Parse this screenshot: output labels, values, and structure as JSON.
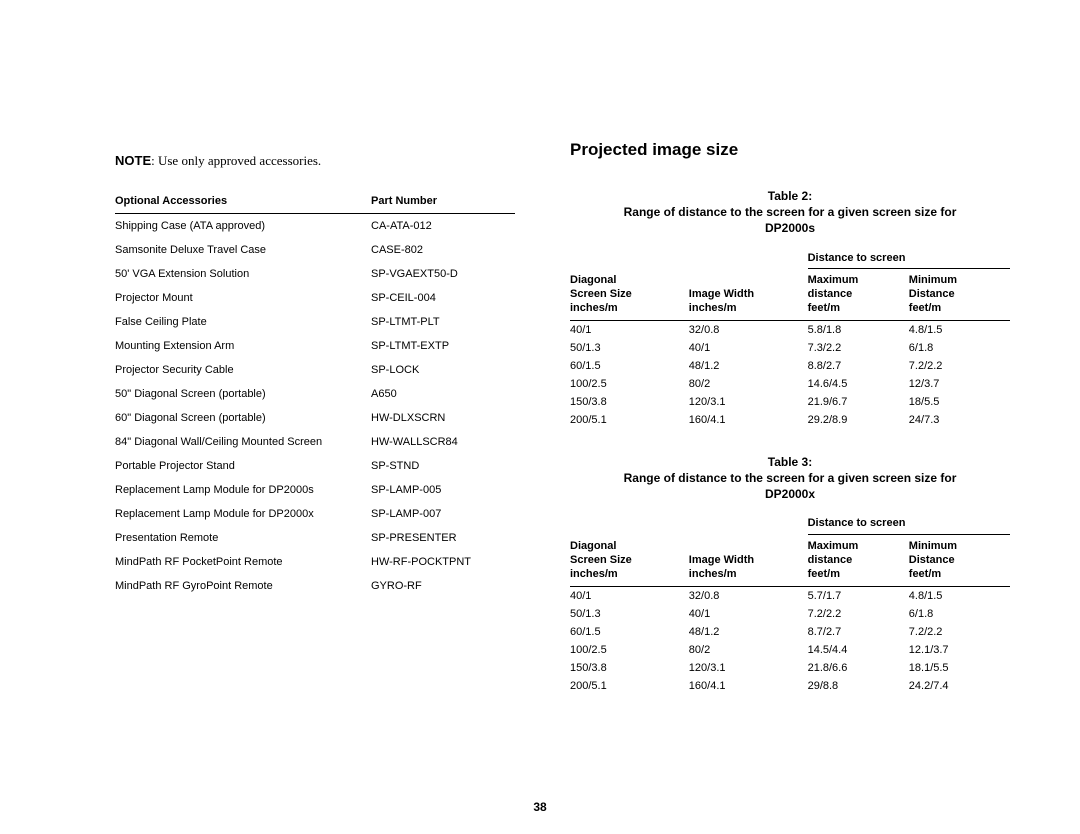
{
  "leftColumn": {
    "noteBold": "NOTE",
    "noteText": ": Use only approved accessories.",
    "headers": {
      "col1": "Optional Accessories",
      "col2": "Part Number"
    },
    "rows": [
      {
        "name": "Shipping Case (ATA approved)",
        "part": "CA-ATA-012"
      },
      {
        "name": "Samsonite Deluxe Travel Case",
        "part": "CASE-802"
      },
      {
        "name": "50' VGA Extension Solution",
        "part": "SP-VGAEXT50-D"
      },
      {
        "name": "Projector Mount",
        "part": "SP-CEIL-004"
      },
      {
        "name": "False Ceiling Plate",
        "part": "SP-LTMT-PLT"
      },
      {
        "name": "Mounting Extension Arm",
        "part": "SP-LTMT-EXTP"
      },
      {
        "name": "Projector Security Cable",
        "part": "SP-LOCK"
      },
      {
        "name": "50\" Diagonal Screen (portable)",
        "part": "A650"
      },
      {
        "name": "60\" Diagonal Screen (portable)",
        "part": "HW-DLXSCRN"
      },
      {
        "name": "84\" Diagonal Wall/Ceiling Mounted Screen",
        "part": "HW-WALLSCR84"
      },
      {
        "name": "Portable Projector Stand",
        "part": "SP-STND"
      },
      {
        "name": "Replacement Lamp Module for DP2000s",
        "part": "SP-LAMP-005"
      },
      {
        "name": "Replacement Lamp Module for DP2000x",
        "part": "SP-LAMP-007"
      },
      {
        "name": "Presentation Remote",
        "part": "SP-PRESENTER"
      },
      {
        "name": "MindPath RF PocketPoint Remote",
        "part": "HW-RF-POCKTPNT"
      },
      {
        "name": "MindPath RF GyroPoint Remote",
        "part": "GYRO-RF"
      }
    ]
  },
  "rightColumn": {
    "heading": "Projected image size",
    "table2": {
      "captionLine1": "Table 2:",
      "captionLine2": "Range of distance to the screen for a given screen size for",
      "captionLine3": "DP2000s",
      "spanHeader": "Distance to screen",
      "headers": {
        "c1": "Diagonal\nScreen Size\ninches/m",
        "c2": "Image Width\ninches/m",
        "c3": "Maximum\ndistance\nfeet/m",
        "c4": "Minimum\nDistance\nfeet/m"
      },
      "rows": [
        {
          "c1": "40/1",
          "c2": "32/0.8",
          "c3": "5.8/1.8",
          "c4": "4.8/1.5"
        },
        {
          "c1": "50/1.3",
          "c2": "40/1",
          "c3": "7.3/2.2",
          "c4": "6/1.8"
        },
        {
          "c1": "60/1.5",
          "c2": "48/1.2",
          "c3": "8.8/2.7",
          "c4": "7.2/2.2"
        },
        {
          "c1": "100/2.5",
          "c2": "80/2",
          "c3": "14.6/4.5",
          "c4": "12/3.7"
        },
        {
          "c1": "150/3.8",
          "c2": "120/3.1",
          "c3": "21.9/6.7",
          "c4": "18/5.5"
        },
        {
          "c1": "200/5.1",
          "c2": "160/4.1",
          "c3": "29.2/8.9",
          "c4": "24/7.3"
        }
      ]
    },
    "table3": {
      "captionLine1": "Table 3:",
      "captionLine2": "Range of distance to the screen for a given screen size for",
      "captionLine3": "DP2000x",
      "spanHeader": "Distance to screen",
      "headers": {
        "c1": "Diagonal\nScreen Size\ninches/m",
        "c2": "Image Width\ninches/m",
        "c3": "Maximum\ndistance\nfeet/m",
        "c4": "Minimum\nDistance\nfeet/m"
      },
      "rows": [
        {
          "c1": "40/1",
          "c2": "32/0.8",
          "c3": "5.7/1.7",
          "c4": "4.8/1.5"
        },
        {
          "c1": "50/1.3",
          "c2": "40/1",
          "c3": "7.2/2.2",
          "c4": "6/1.8"
        },
        {
          "c1": "60/1.5",
          "c2": "48/1.2",
          "c3": "8.7/2.7",
          "c4": "7.2/2.2"
        },
        {
          "c1": "100/2.5",
          "c2": "80/2",
          "c3": "14.5/4.4",
          "c4": "12.1/3.7"
        },
        {
          "c1": "150/3.8",
          "c2": "120/3.1",
          "c3": "21.8/6.6",
          "c4": "18.1/5.5"
        },
        {
          "c1": "200/5.1",
          "c2": "160/4.1",
          "c3": "29/8.8",
          "c4": "24.2/7.4"
        }
      ]
    }
  },
  "pageNumber": "38"
}
